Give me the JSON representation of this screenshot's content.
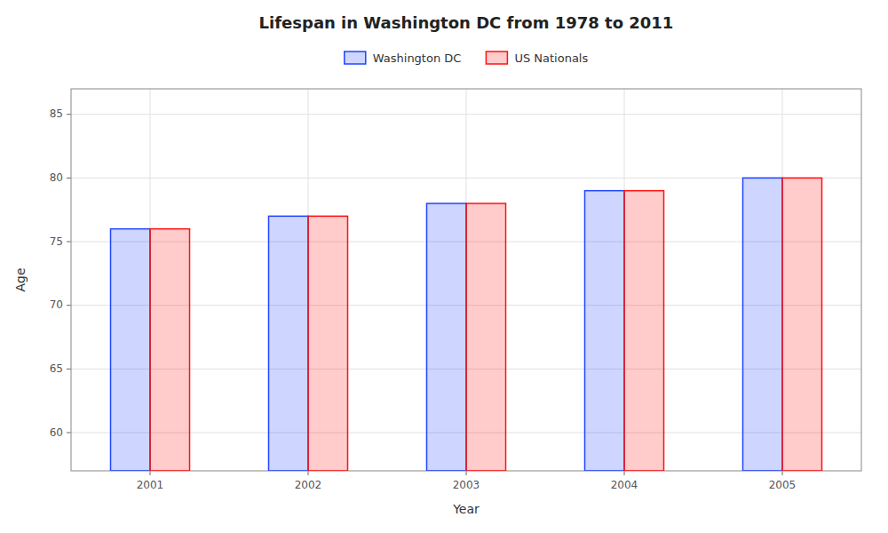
{
  "chart_data": {
    "type": "bar",
    "title": "Lifespan in Washington DC from 1978 to 2011",
    "x_label": "Year",
    "y_label": "Age",
    "categories": [
      "2001",
      "2002",
      "2003",
      "2004",
      "2005"
    ],
    "series": [
      {
        "name": "Washington DC",
        "color": "#2244ff",
        "values": [
          76.0,
          77.0,
          78.0,
          79.0,
          80.0
        ]
      },
      {
        "name": "US Nationals",
        "color": "#ff1111",
        "values": [
          76.0,
          77.0,
          78.0,
          79.0,
          80.0
        ]
      }
    ],
    "ylim": [
      57,
      87
    ],
    "yticks": [
      60,
      65,
      70,
      75,
      80,
      85
    ],
    "grid": true,
    "legend": "top"
  }
}
